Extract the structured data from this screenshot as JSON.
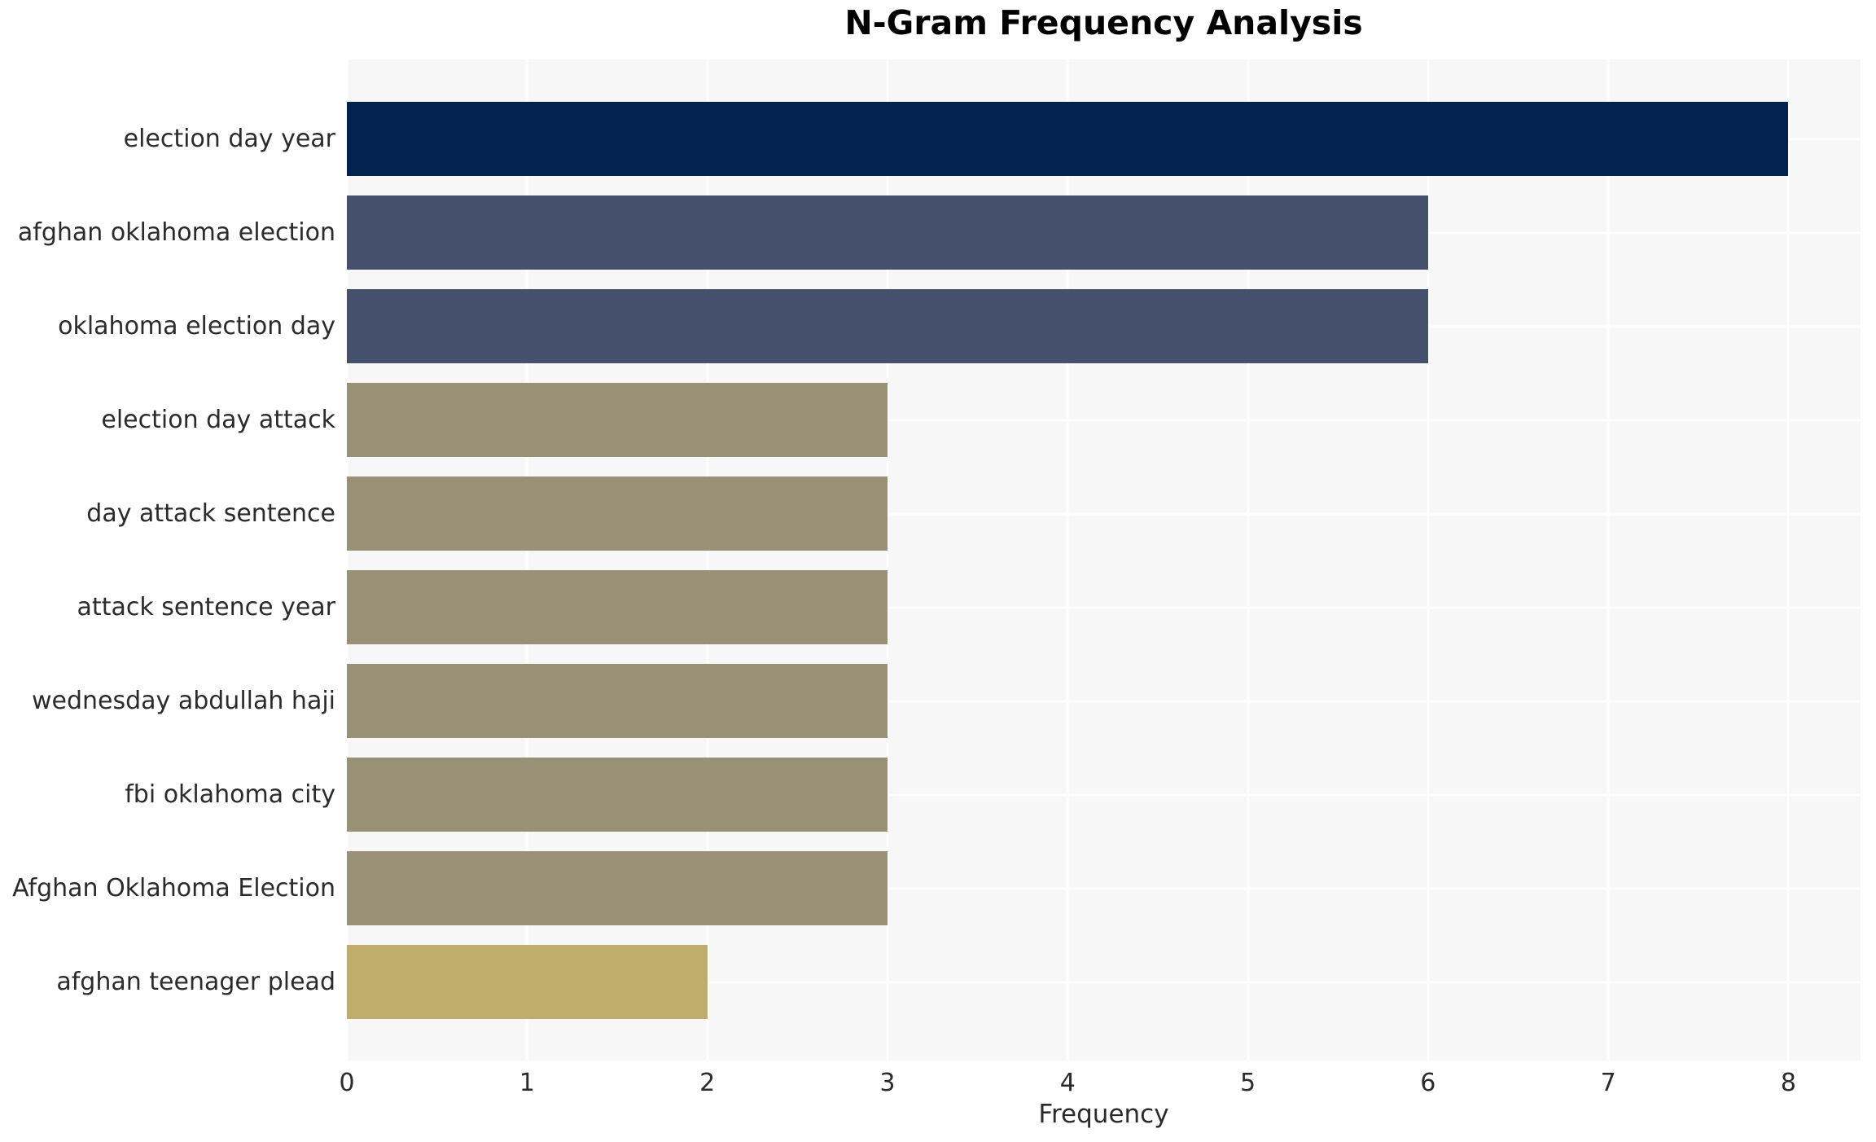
{
  "title": "N-Gram Frequency Analysis",
  "chart_data": {
    "type": "bar",
    "orientation": "horizontal",
    "title": "N-Gram Frequency Analysis",
    "xlabel": "Frequency",
    "ylabel": "",
    "categories": [
      "election day year",
      "afghan oklahoma election",
      "oklahoma election day",
      "election day attack",
      "day attack sentence",
      "attack sentence year",
      "wednesday abdullah haji",
      "fbi oklahoma city",
      "Afghan Oklahoma Election",
      "afghan teenager plead"
    ],
    "values": [
      8,
      6,
      6,
      3,
      3,
      3,
      3,
      3,
      3,
      2
    ],
    "bar_colors": [
      "#02234E",
      "#454F6E",
      "#454F6E",
      "#999176",
      "#999176",
      "#999176",
      "#999176",
      "#999176",
      "#999176",
      "#BEAD6C"
    ],
    "xticks": [
      0,
      1,
      2,
      3,
      4,
      5,
      6,
      7,
      8
    ],
    "xlim": [
      0,
      8.4
    ],
    "grid": true,
    "legend": "none",
    "colors": {
      "plot_background": "#F7F7F7",
      "page_background": "#FFFFFF",
      "gridline": "#FFFFFF",
      "tick_text": "#2B2B2B",
      "title_text": "#000000"
    }
  }
}
